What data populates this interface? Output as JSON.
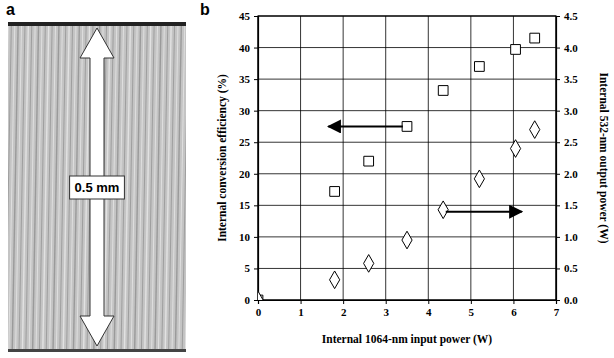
{
  "panel_labels": [
    "a",
    "b"
  ],
  "image": {
    "scale_label": "0.5 mm"
  },
  "chart_data": {
    "type": "scatter",
    "xlabel": "Internal 1064-nm input power (W)",
    "ylabel": "Internal conversion efficiency (%)",
    "y2label": "Internal 532-nm output power (W)",
    "x": [
      0,
      1.8,
      2.6,
      3.5,
      4.35,
      5.2,
      6.05,
      6.5
    ],
    "series": [
      {
        "color": "#000000",
        "marker": "square",
        "values": [
          0,
          17.2,
          22,
          27.5,
          33.2,
          37,
          39.7,
          41.5
        ]
      },
      {
        "color": "#000000",
        "marker": "diamond",
        "axis": "y2",
        "values": [
          0,
          0.32,
          0.58,
          0.95,
          1.43,
          1.92,
          2.4,
          2.7
        ]
      }
    ],
    "xlim": [
      0,
      7
    ],
    "xticks": [
      0,
      1,
      2,
      3,
      4,
      5,
      6,
      7
    ],
    "ylim": [
      0,
      45
    ],
    "yticks": [
      0,
      5,
      10,
      15,
      20,
      25,
      30,
      35,
      40,
      45
    ],
    "y2lim": [
      0,
      4.5
    ],
    "y2ticks": [
      {
        "value": 0,
        "label": "0.0"
      },
      0.5,
      {
        "value": 1,
        "label": "1.0"
      },
      1.5,
      {
        "value": 2,
        "label": "2.0"
      },
      2.5,
      {
        "value": 3,
        "label": "3.0"
      },
      3.5,
      {
        "value": 4,
        "label": "4.0"
      },
      4.5
    ],
    "grid": true
  }
}
